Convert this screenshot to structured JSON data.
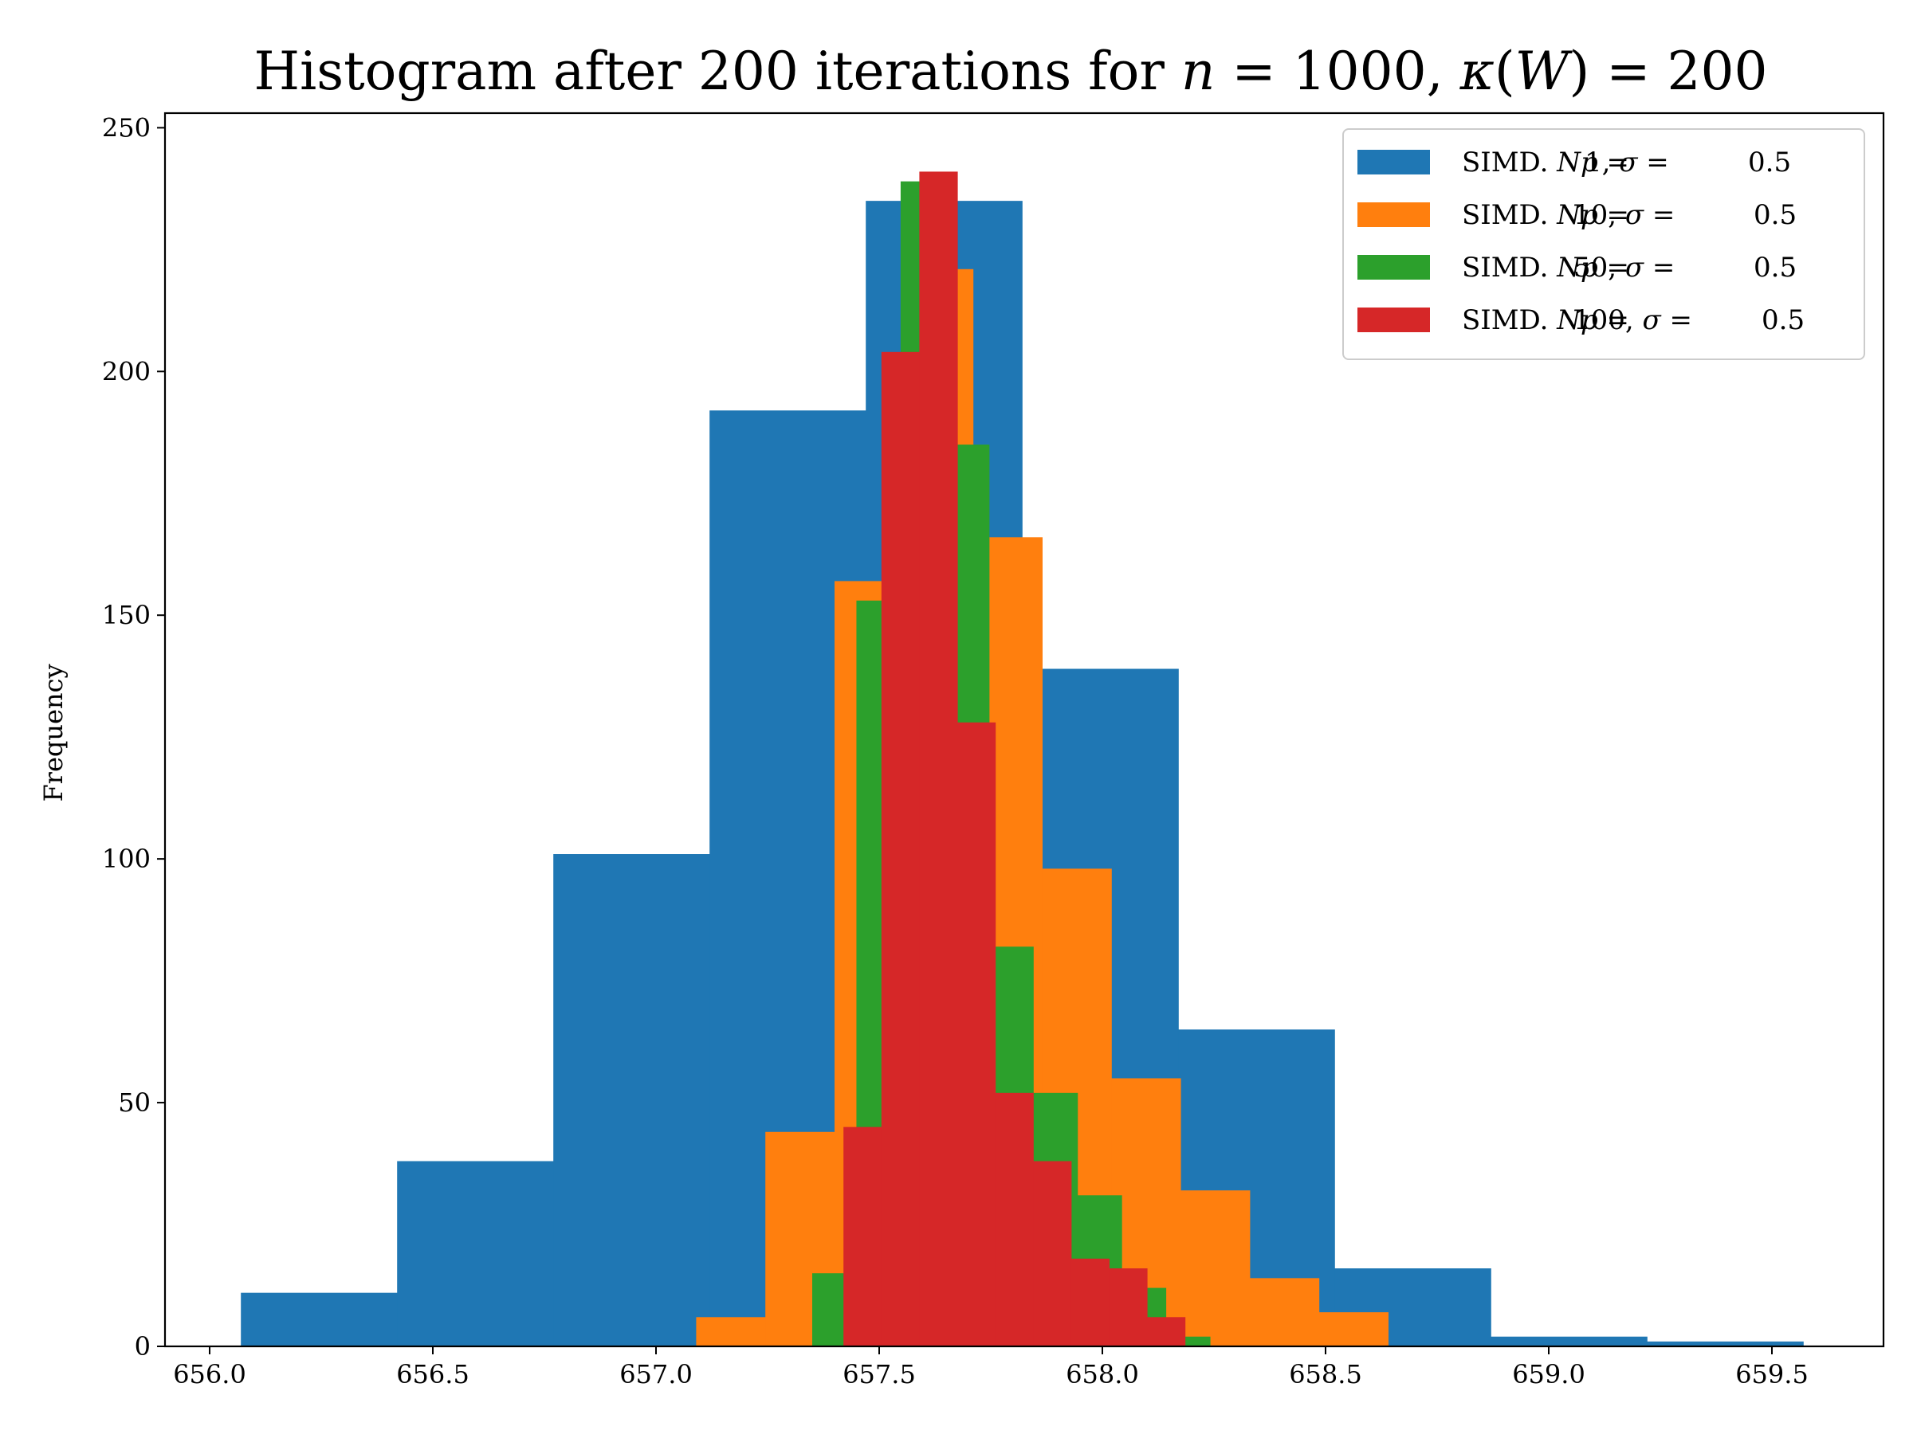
{
  "chart_data": {
    "type": "bar",
    "title": "Histogram after 200 iterations for n = 1000, κ(W) = 200",
    "xlabel": "",
    "ylabel": "Frequency",
    "xlim": [
      655.9,
      659.75
    ],
    "ylim": [
      0,
      253
    ],
    "xticks": [
      656.0,
      656.5,
      657.0,
      657.5,
      658.0,
      658.5,
      659.0,
      659.5
    ],
    "xtick_labels": [
      "656.0",
      "656.5",
      "657.0",
      "657.5",
      "658.0",
      "658.5",
      "659.0",
      "659.5"
    ],
    "yticks": [
      0,
      50,
      100,
      150,
      200,
      250
    ],
    "ytick_labels": [
      "0",
      "50",
      "100",
      "150",
      "200",
      "250"
    ],
    "grid": false,
    "legend_position": "top-right",
    "series": [
      {
        "name": "SIMD. Np = 1, σ = 0.5",
        "color": "#1f77b4",
        "bin_edges": [
          656.07,
          656.42,
          656.77,
          657.12,
          657.47,
          657.82,
          658.17,
          658.52,
          658.87,
          659.22,
          659.57
        ],
        "values": [
          11,
          38,
          101,
          192,
          235,
          139,
          65,
          16,
          2,
          1
        ]
      },
      {
        "name": "SIMD. Np = 10, σ = 0.5",
        "color": "#ff7f0e",
        "bin_edges": [
          657.09,
          657.245,
          657.4,
          657.555,
          657.71,
          657.865,
          658.02,
          658.175,
          658.33,
          658.485,
          658.64
        ],
        "values": [
          6,
          44,
          157,
          221,
          166,
          98,
          55,
          32,
          14,
          7
        ]
      },
      {
        "name": "SIMD. Np = 50, σ = 0.5",
        "color": "#2ca02c",
        "bin_edges": [
          657.35,
          657.449,
          657.548,
          657.647,
          657.746,
          657.845,
          657.944,
          658.043,
          658.142,
          658.241,
          658.34
        ],
        "values": [
          15,
          153,
          239,
          185,
          82,
          52,
          31,
          12,
          2,
          0
        ]
      },
      {
        "name": "SIMD. Np = 100, σ = 0.5",
        "color": "#d62728",
        "bin_edges": [
          657.42,
          657.505,
          657.59,
          657.675,
          657.76,
          657.845,
          657.93,
          658.015,
          658.1,
          658.185,
          658.27
        ],
        "values": [
          45,
          204,
          241,
          128,
          52,
          38,
          18,
          16,
          6,
          0
        ]
      }
    ]
  },
  "legend": {
    "items": [
      {
        "prefix": "SIMD. ",
        "np_sym": "Np",
        "np_val": "1",
        "sigma_sym": "σ",
        "sigma_val": "0.5"
      },
      {
        "prefix": "SIMD. ",
        "np_sym": "Np",
        "np_val": "10",
        "sigma_sym": "σ",
        "sigma_val": "0.5"
      },
      {
        "prefix": "SIMD. ",
        "np_sym": "Np",
        "np_val": "50",
        "sigma_sym": "σ",
        "sigma_val": "0.5"
      },
      {
        "prefix": "SIMD. ",
        "np_sym": "Np",
        "np_val": "100",
        "sigma_sym": "σ",
        "sigma_val": "0.5"
      }
    ]
  },
  "title_parts": {
    "prefix": "Histogram after 200 iterations for ",
    "n_sym": "n",
    "n_val": " = 1000, ",
    "kappa_sym": "κ",
    "paren_open": "(",
    "w_sym": "W",
    "paren_close": ") = 200"
  }
}
